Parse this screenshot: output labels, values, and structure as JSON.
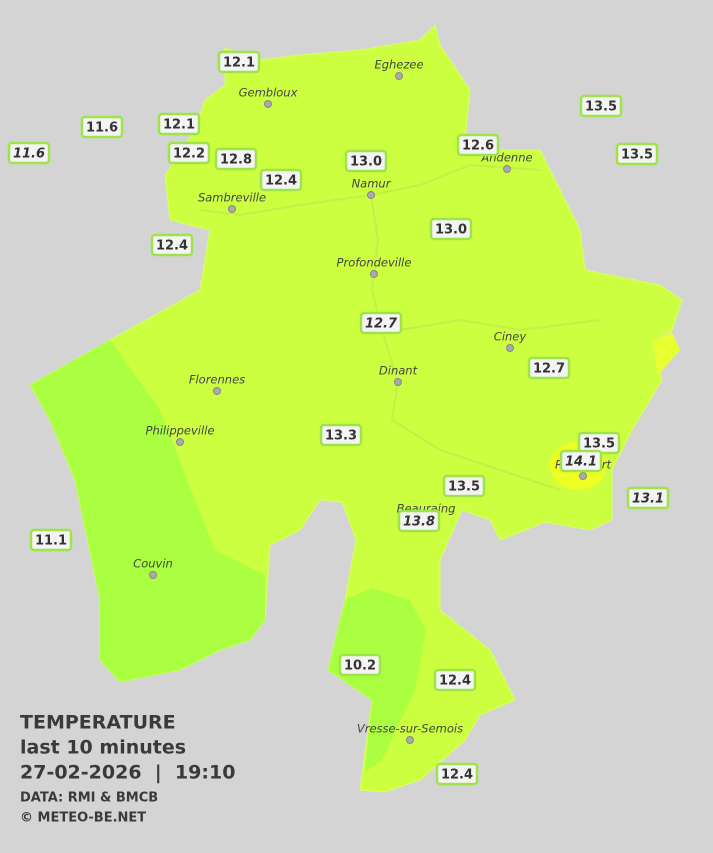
{
  "header": {
    "title": "TEMPERATURE",
    "subtitle": "last 10 minutes",
    "timestamp": "27-02-2026  |  19:10",
    "source": "DATA: RMI & BMCB",
    "copyright": "© METEO-BE.NET"
  },
  "cities": [
    "Eghezee",
    "Gembloux",
    "Andenne",
    "Sambreville",
    "Namur",
    "Profondeville",
    "Ciney",
    "Dinant",
    "Florennes",
    "Philippeville",
    "Beauraing",
    "Rochefort",
    "Couvin",
    "Vresse-sur-Semois"
  ],
  "stations": [
    "12.1",
    "11.6",
    "11.6",
    "12.1",
    "12.2",
    "12.8",
    "12.4",
    "13.0",
    "12.6",
    "13.5",
    "13.5",
    "12.4",
    "13.0",
    "12.7",
    "12.7",
    "13.3",
    "13.5",
    "14.1",
    "13.5",
    "13.1",
    "13.8",
    "11.1",
    "10.2",
    "12.4",
    "12.4"
  ]
}
